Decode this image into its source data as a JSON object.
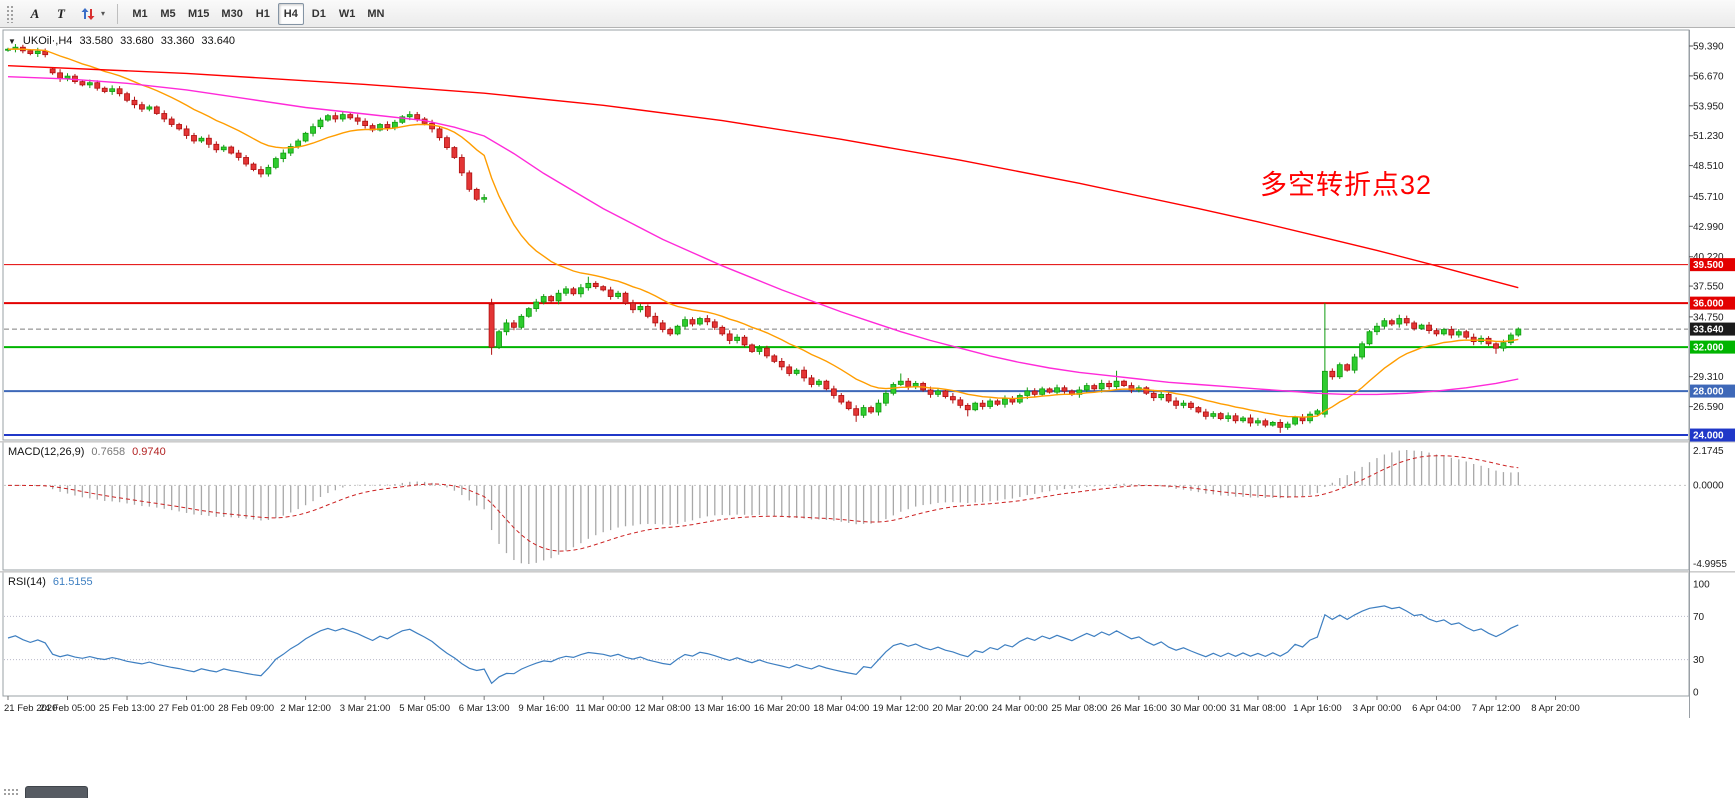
{
  "toolbar": {
    "tool_buttons": [
      {
        "id": "text-annotation",
        "label": "A"
      },
      {
        "id": "text-label",
        "label": "T"
      }
    ],
    "icons": {
      "dropdown_caret": "▾"
    },
    "timeframes": [
      {
        "label": "M1",
        "active": false
      },
      {
        "label": "M5",
        "active": false
      },
      {
        "label": "M15",
        "active": false
      },
      {
        "label": "M30",
        "active": false
      },
      {
        "label": "H1",
        "active": false
      },
      {
        "label": "H4",
        "active": true
      },
      {
        "label": "D1",
        "active": false
      },
      {
        "label": "W1",
        "active": false
      },
      {
        "label": "MN",
        "active": false
      }
    ]
  },
  "main_chart": {
    "symbol_label": "UKOil·,H4",
    "ohlc": {
      "open": "33.580",
      "high": "33.680",
      "low": "33.360",
      "close": "33.640"
    },
    "annotation": {
      "text": "多空转折点32",
      "color": "#ff0000"
    },
    "icons": {
      "collapse_triangle": "▼"
    }
  },
  "indicators": {
    "macd": {
      "title": "MACD(12,26,9)",
      "value_main": "0.7658",
      "value_signal": "0.9740"
    },
    "rsi": {
      "title": "RSI(14)",
      "value": "61.5155"
    }
  },
  "chart_data": {
    "type": "candlestick",
    "title": "UKOil H4",
    "price_axis": {
      "labels": [
        59.39,
        56.67,
        53.95,
        51.23,
        48.51,
        45.71,
        42.99,
        40.22,
        37.55,
        34.75,
        29.31,
        26.59
      ],
      "range": [
        23.8,
        60.7
      ]
    },
    "levels": [
      {
        "price": 39.5,
        "label": "39.500",
        "color": "#e30000",
        "width": 1
      },
      {
        "price": 36.0,
        "label": "36.000",
        "color": "#e30000",
        "width": 2
      },
      {
        "price": 32.0,
        "label": "32.000",
        "color": "#00b400",
        "width": 2
      },
      {
        "price": 28.0,
        "label": "28.000",
        "color": "#3e68b8",
        "width": 2
      },
      {
        "price": 24.0,
        "label": "24.000",
        "color": "#2038c8",
        "width": 2
      }
    ],
    "bid": {
      "price": 33.64,
      "label": "33.640",
      "tag_color": "#1b1b1b"
    },
    "candle_colors": {
      "up_fill": "#2ecc2e",
      "up_stroke": "#0f9b0f",
      "down_fill": "#e33535",
      "down_stroke": "#b01010"
    },
    "wick": 0.22,
    "closes": [
      59.1,
      59.28,
      58.95,
      58.7,
      58.92,
      58.6,
      56.95,
      56.45,
      56.65,
      56.15,
      55.85,
      56.05,
      55.55,
      55.25,
      55.5,
      55.05,
      54.45,
      54.05,
      53.65,
      53.85,
      53.25,
      52.75,
      52.25,
      51.85,
      51.25,
      50.75,
      51.0,
      50.45,
      49.95,
      50.2,
      49.65,
      49.25,
      48.65,
      48.15,
      47.75,
      48.35,
      49.15,
      49.65,
      50.25,
      50.75,
      51.45,
      52.05,
      52.65,
      53.05,
      52.75,
      53.15,
      52.85,
      52.55,
      52.15,
      51.75,
      52.25,
      51.95,
      52.45,
      52.95,
      53.15,
      52.75,
      52.35,
      51.85,
      51.05,
      50.15,
      49.25,
      47.85,
      46.35,
      45.45,
      45.6,
      32.0,
      33.4,
      34.2,
      33.8,
      34.8,
      35.5,
      36.1,
      36.6,
      36.2,
      36.9,
      37.3,
      36.85,
      37.4,
      37.8,
      37.5,
      37.2,
      36.6,
      36.9,
      36.0,
      35.4,
      35.7,
      34.8,
      34.2,
      33.6,
      33.2,
      33.9,
      34.5,
      34.1,
      34.6,
      34.3,
      33.8,
      33.2,
      32.6,
      32.9,
      32.2,
      31.6,
      31.9,
      31.2,
      30.7,
      30.2,
      29.6,
      29.9,
      29.2,
      28.6,
      28.9,
      28.2,
      27.6,
      27.0,
      26.4,
      25.8,
      26.5,
      26.1,
      26.9,
      27.8,
      28.6,
      28.9,
      28.4,
      28.7,
      28.1,
      27.7,
      28.0,
      27.5,
      27.2,
      26.7,
      26.3,
      26.9,
      26.6,
      27.1,
      26.8,
      27.3,
      27.0,
      27.6,
      28.0,
      27.7,
      28.2,
      27.9,
      28.3,
      28.0,
      27.7,
      28.1,
      28.5,
      28.2,
      28.7,
      28.4,
      28.9,
      28.5,
      28.1,
      28.3,
      27.8,
      27.4,
      27.7,
      27.1,
      26.7,
      26.9,
      26.5,
      26.1,
      25.7,
      25.95,
      25.5,
      25.75,
      25.3,
      25.55,
      25.1,
      25.3,
      24.9,
      25.15,
      24.7,
      25.0,
      25.6,
      25.3,
      25.9,
      26.2,
      29.8,
      29.3,
      30.4,
      29.9,
      31.1,
      32.3,
      33.4,
      33.9,
      34.4,
      34.1,
      34.6,
      34.2,
      33.7,
      34.0,
      33.5,
      33.2,
      33.6,
      33.1,
      33.4,
      32.9,
      32.5,
      32.8,
      32.3,
      31.9,
      32.4,
      33.1,
      33.64
    ],
    "open_overrides": {
      "0": 59.0,
      "6": 57.3,
      "65": 35.9,
      "177": 25.9
    },
    "high_overrides": {
      "65": 36.4,
      "78": 38.4,
      "120": 29.6,
      "149": 29.85,
      "177": 36.0,
      "187": 34.95
    },
    "low_overrides": {
      "65": 31.3,
      "114": 25.2,
      "129": 25.7,
      "171": 24.2,
      "177": 25.6,
      "200": 31.4
    },
    "moving_averages": [
      {
        "name": "fast",
        "color": "#ff9d00",
        "type": "ema",
        "period": 16
      },
      {
        "name": "mid",
        "color": "#ff2ad9",
        "type": "points",
        "points": [
          [
            0,
            56.6
          ],
          [
            8,
            56.4
          ],
          [
            16,
            56.0
          ],
          [
            24,
            55.4
          ],
          [
            32,
            54.6
          ],
          [
            40,
            53.8
          ],
          [
            48,
            53.2
          ],
          [
            56,
            52.6
          ],
          [
            60,
            52.0
          ],
          [
            64,
            51.2
          ],
          [
            68,
            49.6
          ],
          [
            72,
            47.8
          ],
          [
            76,
            46.2
          ],
          [
            80,
            44.6
          ],
          [
            84,
            43.2
          ],
          [
            88,
            41.8
          ],
          [
            92,
            40.6
          ],
          [
            96,
            39.4
          ],
          [
            100,
            38.3
          ],
          [
            104,
            37.2
          ],
          [
            108,
            36.2
          ],
          [
            112,
            35.2
          ],
          [
            116,
            34.3
          ],
          [
            120,
            33.4
          ],
          [
            124,
            32.6
          ],
          [
            128,
            31.9
          ],
          [
            132,
            31.2
          ],
          [
            136,
            30.6
          ],
          [
            140,
            30.1
          ],
          [
            144,
            29.7
          ],
          [
            148,
            29.4
          ],
          [
            152,
            29.1
          ],
          [
            156,
            28.8
          ],
          [
            160,
            28.6
          ],
          [
            164,
            28.4
          ],
          [
            168,
            28.2
          ],
          [
            172,
            28.0
          ],
          [
            176,
            27.8
          ],
          [
            180,
            27.7
          ],
          [
            184,
            27.7
          ],
          [
            188,
            27.8
          ],
          [
            192,
            28.0
          ],
          [
            196,
            28.3
          ],
          [
            200,
            28.7
          ],
          [
            203,
            29.1
          ]
        ]
      },
      {
        "name": "slow",
        "color": "#ff0000",
        "type": "points",
        "points": [
          [
            0,
            57.6
          ],
          [
            24,
            56.9
          ],
          [
            48,
            55.9
          ],
          [
            64,
            55.1
          ],
          [
            80,
            54.0
          ],
          [
            96,
            52.6
          ],
          [
            112,
            50.9
          ],
          [
            128,
            49.0
          ],
          [
            144,
            46.9
          ],
          [
            160,
            44.6
          ],
          [
            168,
            43.4
          ],
          [
            176,
            42.1
          ],
          [
            184,
            40.8
          ],
          [
            192,
            39.4
          ],
          [
            198,
            38.3
          ],
          [
            203,
            37.4
          ]
        ]
      }
    ],
    "time_axis": [
      {
        "bar": 0,
        "label": "21 Feb 2020"
      },
      {
        "bar": 8,
        "label": "24 Feb 05:00"
      },
      {
        "bar": 16,
        "label": "25 Feb 13:00"
      },
      {
        "bar": 24,
        "label": "27 Feb 01:00"
      },
      {
        "bar": 32,
        "label": "28 Feb 09:00"
      },
      {
        "bar": 40,
        "label": "2 Mar 12:00"
      },
      {
        "bar": 48,
        "label": "3 Mar 21:00"
      },
      {
        "bar": 56,
        "label": "5 Mar 05:00"
      },
      {
        "bar": 64,
        "label": "6 Mar 13:00"
      },
      {
        "bar": 72,
        "label": "9 Mar 16:00"
      },
      {
        "bar": 80,
        "label": "11 Mar 00:00"
      },
      {
        "bar": 88,
        "label": "12 Mar 08:00"
      },
      {
        "bar": 96,
        "label": "13 Mar 16:00"
      },
      {
        "bar": 104,
        "label": "16 Mar 20:00"
      },
      {
        "bar": 112,
        "label": "18 Mar 04:00"
      },
      {
        "bar": 120,
        "label": "19 Mar 12:00"
      },
      {
        "bar": 128,
        "label": "20 Mar 20:00"
      },
      {
        "bar": 136,
        "label": "24 Mar 00:00"
      },
      {
        "bar": 144,
        "label": "25 Mar 08:00"
      },
      {
        "bar": 152,
        "label": "26 Mar 16:00"
      },
      {
        "bar": 160,
        "label": "30 Mar 00:00"
      },
      {
        "bar": 168,
        "label": "31 Mar 08:00"
      },
      {
        "bar": 176,
        "label": "1 Apr 16:00"
      },
      {
        "bar": 184,
        "label": "3 Apr 00:00"
      },
      {
        "bar": 192,
        "label": "6 Apr 04:00"
      },
      {
        "bar": 200,
        "label": "7 Apr 12:00"
      },
      {
        "bar": 208,
        "label": "8 Apr 20:00"
      }
    ],
    "macd": {
      "fast": 12,
      "slow": 26,
      "signal": 9,
      "colors": {
        "histogram": "#a8a8a8",
        "signal": "#cc2222"
      },
      "scale_labels": [
        "2.1745",
        "0.0000",
        "-4.9955"
      ]
    },
    "rsi": {
      "period": 14,
      "color": "#3e7fc1",
      "levels": [
        70,
        30
      ],
      "scale_labels": [
        "100",
        "70",
        "30",
        "0"
      ]
    }
  }
}
